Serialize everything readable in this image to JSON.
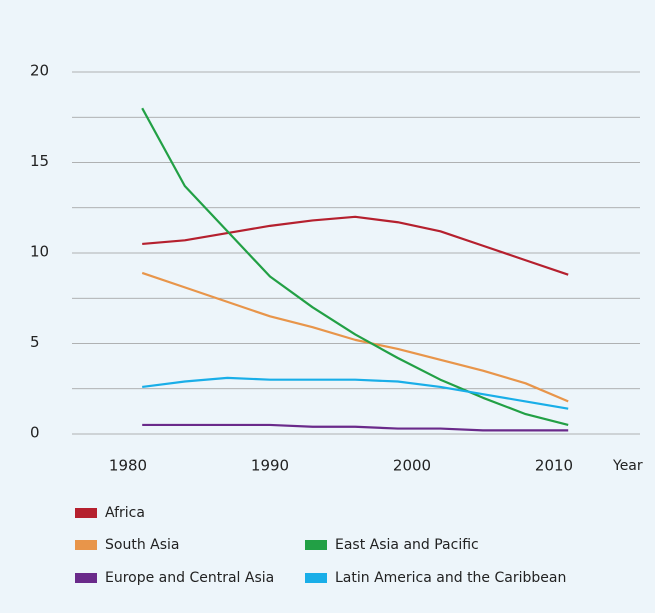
{
  "chart_data": {
    "type": "line",
    "x": [
      1981,
      1984,
      1987,
      1990,
      1993,
      1996,
      1999,
      2002,
      2005,
      2008,
      2011
    ],
    "xlim": [
      1975,
      2016
    ],
    "xticks": [
      1980,
      1990,
      2000,
      2010
    ],
    "x_label": "Year",
    "ylim": [
      0,
      20
    ],
    "yticks": [
      0,
      5,
      10,
      15,
      20
    ],
    "minor_yticks": [
      2.5,
      7.5,
      12.5,
      17.5
    ],
    "grid": true,
    "series": [
      {
        "name": "Africa",
        "color": "#b5202e",
        "values": [
          10.5,
          10.7,
          11.1,
          11.5,
          11.8,
          12.0,
          11.7,
          11.2,
          10.4,
          9.6,
          8.8
        ]
      },
      {
        "name": "South Asia",
        "color": "#e8954a",
        "values": [
          8.9,
          8.1,
          7.3,
          6.5,
          5.9,
          5.2,
          4.7,
          4.1,
          3.5,
          2.8,
          1.8
        ]
      },
      {
        "name": "East Asia and Pacific",
        "color": "#22a045",
        "values": [
          18.0,
          13.7,
          11.2,
          8.7,
          7.0,
          5.5,
          4.2,
          3.0,
          2.0,
          1.1,
          0.5
        ]
      },
      {
        "name": "Europe and Central Asia",
        "color": "#6a2a8a",
        "values": [
          0.5,
          0.5,
          0.5,
          0.5,
          0.4,
          0.4,
          0.3,
          0.3,
          0.2,
          0.2,
          0.2
        ]
      },
      {
        "name": "Latin America and the Caribbean",
        "color": "#19aee8",
        "values": [
          2.6,
          2.9,
          3.1,
          3.0,
          3.0,
          3.0,
          2.9,
          2.6,
          2.2,
          1.8,
          1.4
        ]
      }
    ]
  }
}
